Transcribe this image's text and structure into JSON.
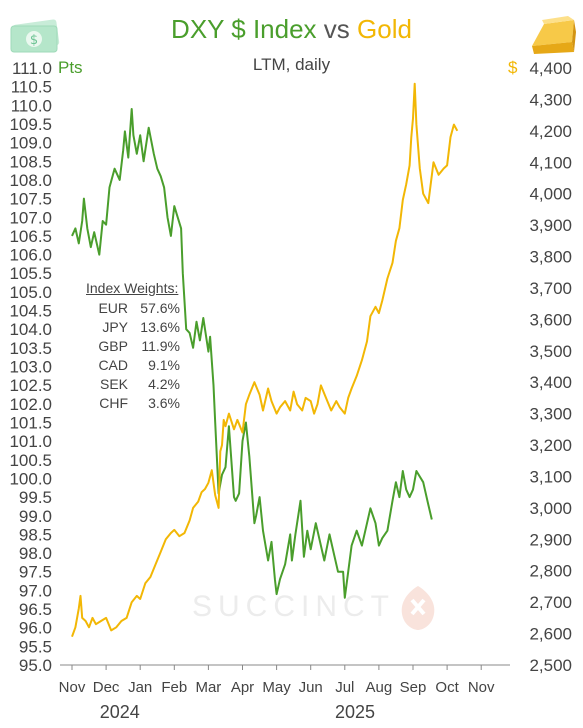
{
  "header": {
    "title_dxy": "DXY $ Index",
    "title_vs": "vs",
    "title_gold": "Gold",
    "subtitle": "LTM, daily",
    "unit_left": "Pts",
    "unit_right": "$"
  },
  "weights": {
    "title": "Index Weights:",
    "rows": [
      {
        "currency": "EUR",
        "weight": "57.6%"
      },
      {
        "currency": "JPY",
        "weight": "13.6%"
      },
      {
        "currency": "GBP",
        "weight": "11.9%"
      },
      {
        "currency": "CAD",
        "weight": "9.1%"
      },
      {
        "currency": "SEK",
        "weight": "4.2%"
      },
      {
        "currency": "CHF",
        "weight": "3.6%"
      }
    ]
  },
  "watermark": "SUCCINCT",
  "icons": [
    "money-icon",
    "gold-bar-icon"
  ],
  "chart_data": {
    "type": "line",
    "subtitle": "LTM, daily",
    "x_ticks": [
      "Nov",
      "Dec",
      "Jan",
      "Feb",
      "Mar",
      "Apr",
      "May",
      "Jun",
      "Jul",
      "Aug",
      "Sep",
      "Oct",
      "Nov"
    ],
    "year_labels": [
      "2024",
      "2025"
    ],
    "y_left": {
      "unit": "Pts",
      "range": [
        95.0,
        111.0
      ],
      "step": 0.5,
      "color": "#4a9e2c",
      "ticks": [
        "95.0",
        "95.5",
        "96.0",
        "96.5",
        "97.0",
        "97.5",
        "98.0",
        "98.5",
        "99.0",
        "99.5",
        "100.0",
        "100.5",
        "101.0",
        "101.5",
        "102.0",
        "102.5",
        "103.0",
        "103.5",
        "104.0",
        "104.5",
        "105.0",
        "105.5",
        "106.0",
        "106.5",
        "107.0",
        "107.5",
        "108.0",
        "108.5",
        "109.0",
        "109.5",
        "110.0",
        "110.5",
        "111.0"
      ]
    },
    "y_right": {
      "unit": "$",
      "range": [
        2500,
        4400
      ],
      "step": 100,
      "color": "#f2b705",
      "ticks": [
        "2,500",
        "2,600",
        "2,700",
        "2,800",
        "2,900",
        "3,000",
        "3,100",
        "3,200",
        "3,300",
        "3,400",
        "3,500",
        "3,600",
        "3,700",
        "3,800",
        "3,900",
        "4,000",
        "4,100",
        "4,200",
        "4,300",
        "4,400"
      ]
    },
    "grid": false,
    "series": [
      {
        "name": "DXY $ Index",
        "axis": "left",
        "color": "#4a9e2c",
        "points": [
          [
            0.0,
            106.5
          ],
          [
            0.1,
            106.7
          ],
          [
            0.2,
            106.3
          ],
          [
            0.3,
            106.9
          ],
          [
            0.35,
            107.5
          ],
          [
            0.45,
            106.7
          ],
          [
            0.55,
            106.2
          ],
          [
            0.65,
            106.6
          ],
          [
            0.8,
            106.0
          ],
          [
            0.9,
            106.9
          ],
          [
            1.0,
            106.8
          ],
          [
            1.1,
            107.8
          ],
          [
            1.25,
            108.3
          ],
          [
            1.4,
            108.0
          ],
          [
            1.5,
            108.8
          ],
          [
            1.55,
            109.3
          ],
          [
            1.65,
            108.6
          ],
          [
            1.75,
            109.9
          ],
          [
            1.8,
            109.2
          ],
          [
            1.9,
            108.7
          ],
          [
            2.0,
            109.2
          ],
          [
            2.1,
            108.5
          ],
          [
            2.25,
            109.4
          ],
          [
            2.4,
            108.7
          ],
          [
            2.5,
            108.3
          ],
          [
            2.6,
            108.1
          ],
          [
            2.7,
            107.8
          ],
          [
            2.8,
            107.0
          ],
          [
            2.9,
            106.5
          ],
          [
            3.0,
            107.3
          ],
          [
            3.1,
            107.0
          ],
          [
            3.2,
            106.7
          ],
          [
            3.25,
            105.5
          ],
          [
            3.35,
            104.0
          ],
          [
            3.45,
            103.9
          ],
          [
            3.55,
            103.5
          ],
          [
            3.65,
            104.2
          ],
          [
            3.75,
            103.7
          ],
          [
            3.85,
            104.3
          ],
          [
            4.0,
            103.4
          ],
          [
            4.05,
            103.8
          ],
          [
            4.15,
            102.5
          ],
          [
            4.2,
            101.5
          ],
          [
            4.3,
            99.6
          ],
          [
            4.4,
            100.1
          ],
          [
            4.5,
            100.3
          ],
          [
            4.6,
            101.4
          ],
          [
            4.75,
            99.5
          ],
          [
            4.8,
            99.4
          ],
          [
            4.9,
            99.6
          ],
          [
            5.0,
            101.0
          ],
          [
            5.1,
            101.5
          ],
          [
            5.2,
            100.6
          ],
          [
            5.35,
            98.8
          ],
          [
            5.4,
            99.0
          ],
          [
            5.5,
            99.5
          ],
          [
            5.6,
            98.6
          ],
          [
            5.75,
            97.8
          ],
          [
            5.85,
            98.3
          ],
          [
            5.95,
            97.3
          ],
          [
            6.0,
            96.9
          ],
          [
            6.1,
            97.3
          ],
          [
            6.25,
            97.7
          ],
          [
            6.4,
            98.5
          ],
          [
            6.45,
            97.8
          ],
          [
            6.55,
            98.5
          ],
          [
            6.7,
            99.4
          ],
          [
            6.8,
            97.9
          ],
          [
            6.9,
            98.6
          ],
          [
            7.0,
            98.1
          ],
          [
            7.15,
            98.8
          ],
          [
            7.25,
            98.4
          ],
          [
            7.4,
            97.8
          ],
          [
            7.55,
            98.5
          ],
          [
            7.7,
            97.9
          ],
          [
            7.8,
            97.5
          ],
          [
            7.95,
            97.5
          ],
          [
            8.0,
            96.8
          ],
          [
            8.1,
            97.5
          ],
          [
            8.2,
            98.2
          ],
          [
            8.35,
            98.6
          ],
          [
            8.5,
            98.2
          ],
          [
            8.6,
            98.6
          ],
          [
            8.75,
            99.2
          ],
          [
            8.9,
            98.8
          ],
          [
            9.0,
            98.2
          ],
          [
            9.1,
            98.4
          ],
          [
            9.25,
            98.6
          ],
          [
            9.4,
            99.4
          ],
          [
            9.5,
            99.9
          ],
          [
            9.6,
            99.5
          ],
          [
            9.7,
            100.2
          ],
          [
            9.8,
            99.7
          ],
          [
            9.9,
            99.5
          ],
          [
            10.0,
            99.7
          ],
          [
            10.1,
            100.2
          ],
          [
            10.3,
            99.9
          ],
          [
            10.45,
            99.3
          ],
          [
            10.55,
            98.9
          ]
        ]
      },
      {
        "name": "Gold",
        "axis": "right",
        "color": "#f2b705",
        "points": [
          [
            0.0,
            2590
          ],
          [
            0.1,
            2620
          ],
          [
            0.2,
            2680
          ],
          [
            0.25,
            2720
          ],
          [
            0.3,
            2650
          ],
          [
            0.4,
            2640
          ],
          [
            0.5,
            2620
          ],
          [
            0.6,
            2650
          ],
          [
            0.7,
            2630
          ],
          [
            0.85,
            2640
          ],
          [
            1.0,
            2650
          ],
          [
            1.15,
            2610
          ],
          [
            1.3,
            2620
          ],
          [
            1.45,
            2640
          ],
          [
            1.6,
            2650
          ],
          [
            1.75,
            2700
          ],
          [
            1.9,
            2720
          ],
          [
            2.0,
            2710
          ],
          [
            2.15,
            2760
          ],
          [
            2.3,
            2780
          ],
          [
            2.45,
            2820
          ],
          [
            2.6,
            2860
          ],
          [
            2.75,
            2900
          ],
          [
            2.9,
            2920
          ],
          [
            3.0,
            2930
          ],
          [
            3.15,
            2910
          ],
          [
            3.3,
            2920
          ],
          [
            3.45,
            2960
          ],
          [
            3.55,
            3000
          ],
          [
            3.7,
            3020
          ],
          [
            3.8,
            3050
          ],
          [
            3.9,
            3060
          ],
          [
            4.0,
            3080
          ],
          [
            4.1,
            3120
          ],
          [
            4.2,
            3040
          ],
          [
            4.3,
            3000
          ],
          [
            4.35,
            3180
          ],
          [
            4.4,
            3200
          ],
          [
            4.45,
            3280
          ],
          [
            4.5,
            3260
          ],
          [
            4.6,
            3300
          ],
          [
            4.75,
            3250
          ],
          [
            4.85,
            3280
          ],
          [
            5.0,
            3240
          ],
          [
            5.1,
            3330
          ],
          [
            5.2,
            3360
          ],
          [
            5.35,
            3400
          ],
          [
            5.5,
            3360
          ],
          [
            5.6,
            3310
          ],
          [
            5.75,
            3380
          ],
          [
            5.85,
            3340
          ],
          [
            6.0,
            3300
          ],
          [
            6.1,
            3320
          ],
          [
            6.25,
            3340
          ],
          [
            6.4,
            3310
          ],
          [
            6.5,
            3370
          ],
          [
            6.6,
            3330
          ],
          [
            6.75,
            3310
          ],
          [
            6.85,
            3350
          ],
          [
            7.0,
            3340
          ],
          [
            7.1,
            3300
          ],
          [
            7.2,
            3330
          ],
          [
            7.3,
            3390
          ],
          [
            7.45,
            3350
          ],
          [
            7.6,
            3310
          ],
          [
            7.75,
            3340
          ],
          [
            7.85,
            3320
          ],
          [
            8.0,
            3300
          ],
          [
            8.1,
            3350
          ],
          [
            8.2,
            3380
          ],
          [
            8.35,
            3420
          ],
          [
            8.5,
            3470
          ],
          [
            8.65,
            3530
          ],
          [
            8.75,
            3610
          ],
          [
            8.9,
            3640
          ],
          [
            9.0,
            3620
          ],
          [
            9.1,
            3660
          ],
          [
            9.25,
            3730
          ],
          [
            9.4,
            3780
          ],
          [
            9.5,
            3850
          ],
          [
            9.6,
            3890
          ],
          [
            9.7,
            3980
          ],
          [
            9.8,
            4030
          ],
          [
            9.9,
            4090
          ],
          [
            9.95,
            4180
          ],
          [
            10.0,
            4240
          ],
          [
            10.05,
            4350
          ],
          [
            10.1,
            4220
          ],
          [
            10.2,
            4080
          ],
          [
            10.3,
            4000
          ],
          [
            10.45,
            3970
          ],
          [
            10.6,
            4100
          ],
          [
            10.75,
            4060
          ],
          [
            10.9,
            4080
          ],
          [
            11.0,
            4090
          ],
          [
            11.1,
            4180
          ],
          [
            11.2,
            4220
          ],
          [
            11.3,
            4200
          ]
        ]
      }
    ]
  }
}
